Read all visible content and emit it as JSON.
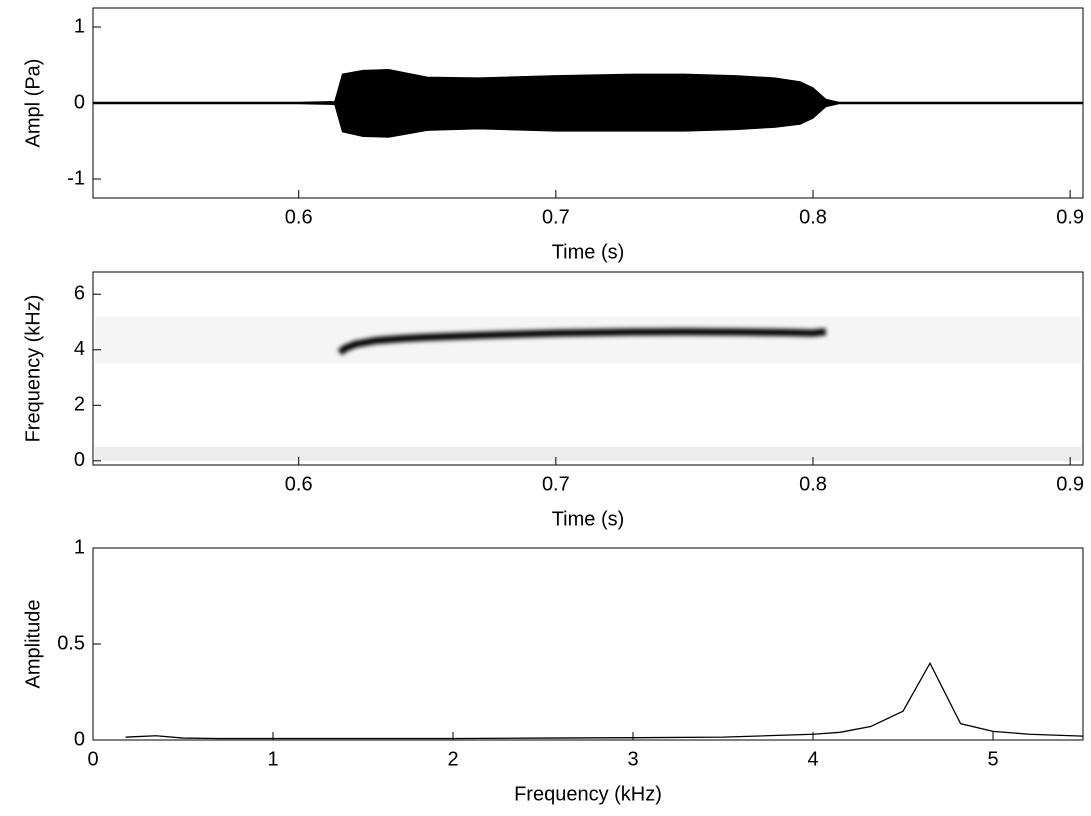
{
  "chart_data": [
    {
      "type": "waveform",
      "ylabel": "Ampl (Pa)",
      "xlabel": "Time (s)",
      "x": [
        0.52,
        0.56,
        0.6,
        0.614,
        0.617,
        0.625,
        0.635,
        0.65,
        0.67,
        0.7,
        0.73,
        0.75,
        0.77,
        0.785,
        0.795,
        0.8,
        0.805,
        0.81,
        0.85,
        0.905
      ],
      "upper": [
        0.01,
        0.01,
        0.01,
        0.02,
        0.38,
        0.43,
        0.44,
        0.34,
        0.33,
        0.36,
        0.38,
        0.38,
        0.36,
        0.33,
        0.28,
        0.2,
        0.05,
        0.01,
        0.01,
        0.01
      ],
      "lower": [
        -0.01,
        -0.01,
        -0.01,
        -0.02,
        -0.38,
        -0.44,
        -0.45,
        -0.36,
        -0.34,
        -0.37,
        -0.37,
        -0.37,
        -0.35,
        -0.32,
        -0.28,
        -0.2,
        -0.05,
        -0.01,
        -0.01,
        -0.01
      ],
      "color": "#000000",
      "xlim": [
        0.52,
        0.905
      ],
      "xticks": [
        0.6,
        0.7,
        0.8,
        0.9
      ],
      "ylim": [
        -1.25,
        1.25
      ],
      "yticks": [
        -1,
        0,
        1
      ]
    },
    {
      "type": "spectrogram",
      "ylabel": "Frequency (kHz)",
      "xlabel": "Time (s)",
      "x": [
        0.616,
        0.618,
        0.622,
        0.63,
        0.64,
        0.65,
        0.67,
        0.7,
        0.73,
        0.75,
        0.77,
        0.79,
        0.8,
        0.805
      ],
      "values": [
        3.9,
        4.05,
        4.2,
        4.33,
        4.4,
        4.45,
        4.52,
        4.6,
        4.64,
        4.65,
        4.64,
        4.62,
        4.6,
        4.65
      ],
      "color": "#000000",
      "xlim": [
        0.52,
        0.905
      ],
      "xticks": [
        0.6,
        0.7,
        0.8,
        0.9
      ],
      "ylim": [
        -0.15,
        6.8
      ],
      "yticks": [
        0,
        2,
        4,
        6
      ]
    },
    {
      "type": "line",
      "ylabel": "Amplitude",
      "xlabel": "Frequency (kHz)",
      "x": [
        0.18,
        0.35,
        0.5,
        0.7,
        1,
        1.5,
        2,
        2.5,
        3,
        3.5,
        4,
        4.15,
        4.32,
        4.5,
        4.65,
        4.82,
        5,
        5.2,
        5.5
      ],
      "values": [
        0.015,
        0.022,
        0.01,
        0.008,
        0.008,
        0.008,
        0.008,
        0.01,
        0.012,
        0.015,
        0.03,
        0.04,
        0.07,
        0.15,
        0.4,
        0.085,
        0.045,
        0.03,
        0.02
      ],
      "color": "#000000",
      "xlim": [
        0,
        5.5
      ],
      "xticks": [
        0,
        1,
        2,
        3,
        4,
        5
      ],
      "ylim": [
        0,
        1
      ],
      "yticks": [
        0,
        0.5,
        1
      ]
    }
  ]
}
